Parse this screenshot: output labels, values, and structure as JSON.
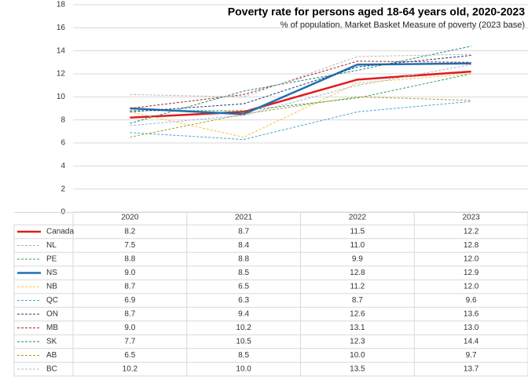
{
  "chart_data": {
    "type": "line",
    "title": "Poverty rate for persons aged 18-64 years old, 2020-2023",
    "subtitle": "% of population, Market Basket Measure of poverty (2023 base)",
    "categories": [
      "2020",
      "2021",
      "2022",
      "2023"
    ],
    "ylim": [
      0,
      18
    ],
    "yticks": [
      0,
      2,
      4,
      6,
      8,
      10,
      12,
      14,
      16,
      18
    ],
    "grid": true,
    "series": [
      {
        "name": "Canada",
        "color": "#e31a1c",
        "style": "solid",
        "values": [
          8.2,
          8.7,
          11.5,
          12.2
        ],
        "value_labels": [
          "8.2",
          "8.7",
          "11.5",
          "12.2"
        ]
      },
      {
        "name": "NL",
        "color": "#9fb3d1",
        "style": "dashed",
        "values": [
          7.5,
          8.4,
          11.0,
          12.8
        ],
        "value_labels": [
          "7.5",
          "8.4",
          "11.0",
          "12.8"
        ]
      },
      {
        "name": "PE",
        "color": "#2ca25f",
        "style": "dashed",
        "values": [
          8.8,
          8.8,
          9.9,
          12.0
        ],
        "value_labels": [
          "8.8",
          "8.8",
          "9.9",
          "12.0"
        ]
      },
      {
        "name": "NS",
        "color": "#1f6fb4",
        "style": "solid",
        "values": [
          9.0,
          8.5,
          12.8,
          12.9
        ],
        "value_labels": [
          "9.0",
          "8.5",
          "12.8",
          "12.9"
        ]
      },
      {
        "name": "NB",
        "color": "#f5c242",
        "style": "dashed",
        "values": [
          8.7,
          6.5,
          11.2,
          12.0
        ],
        "value_labels": [
          "8.7",
          "6.5",
          "11.2",
          "12.0"
        ]
      },
      {
        "name": "QC",
        "color": "#3fa9d8",
        "style": "dashed",
        "values": [
          6.9,
          6.3,
          8.7,
          9.6
        ],
        "value_labels": [
          "6.9",
          "6.3",
          "8.7",
          "9.6"
        ]
      },
      {
        "name": "ON",
        "color": "#1f3a78",
        "style": "dashed",
        "values": [
          8.7,
          9.4,
          12.6,
          13.6
        ],
        "value_labels": [
          "8.7",
          "9.4",
          "12.6",
          "13.6"
        ]
      },
      {
        "name": "MB",
        "color": "#a52a2a",
        "style": "dashed",
        "values": [
          9.0,
          10.2,
          13.1,
          13.0
        ],
        "value_labels": [
          "9.0",
          "10.2",
          "13.1",
          "13.0"
        ]
      },
      {
        "name": "SK",
        "color": "#1a8a6e",
        "style": "dashed",
        "values": [
          7.7,
          10.5,
          12.3,
          14.4
        ],
        "value_labels": [
          "7.7",
          "10.5",
          "12.3",
          "14.4"
        ]
      },
      {
        "name": "AB",
        "color": "#b09a2a",
        "style": "dashed",
        "values": [
          6.5,
          8.5,
          10.0,
          9.7
        ],
        "value_labels": [
          "6.5",
          "8.5",
          "10.0",
          "9.7"
        ]
      },
      {
        "name": "BC",
        "color": "#b8b8b8",
        "style": "dashed",
        "values": [
          10.2,
          10.0,
          13.5,
          13.7
        ],
        "value_labels": [
          "10.2",
          "10.0",
          "13.5",
          "13.7"
        ]
      }
    ]
  }
}
